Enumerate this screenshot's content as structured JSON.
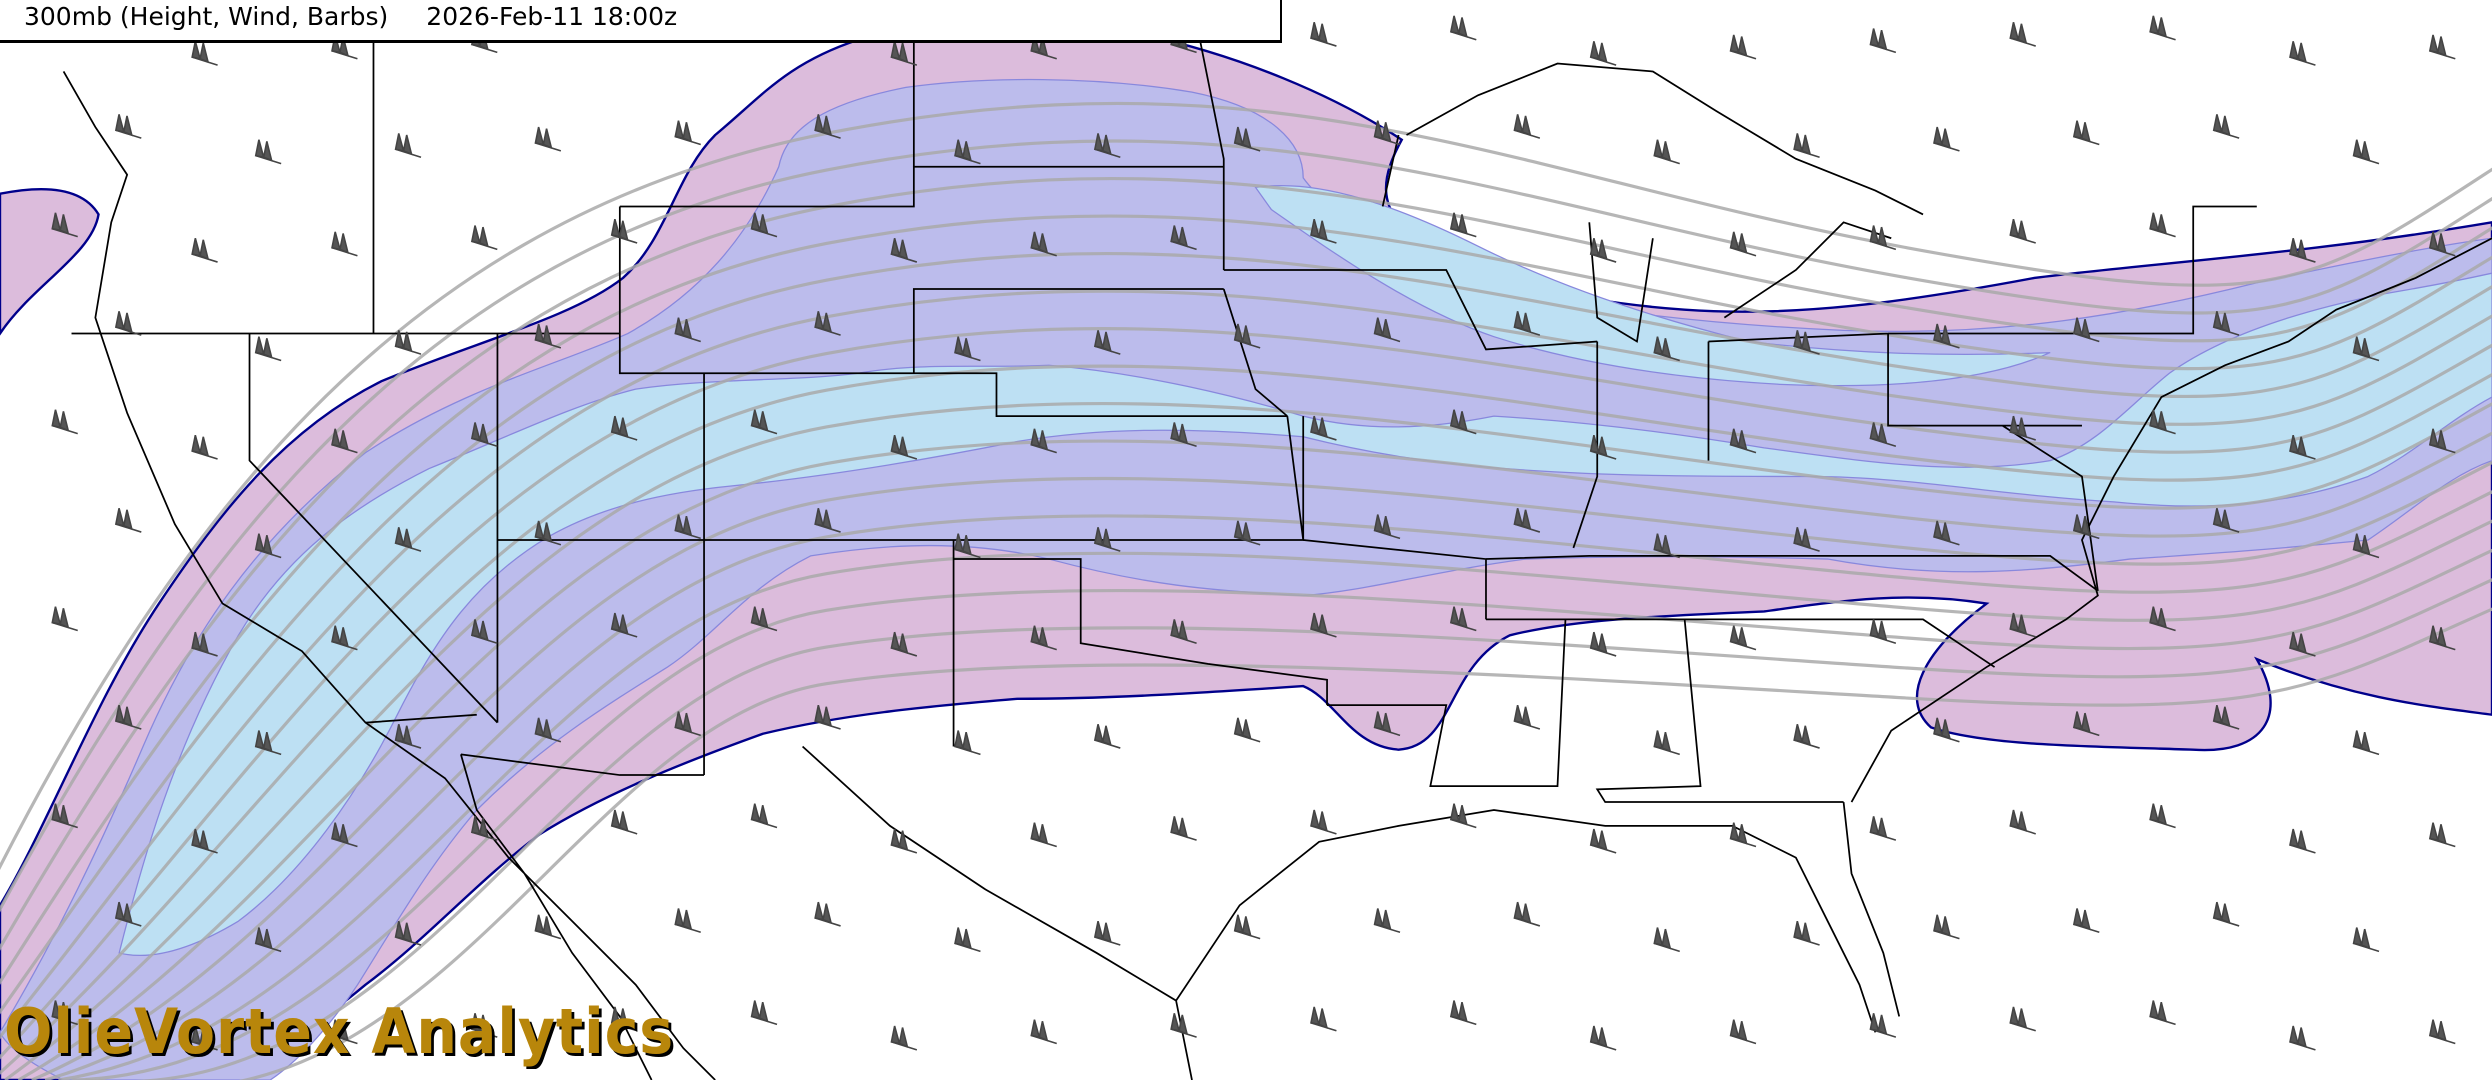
{
  "header": {
    "product": "300mb (Height, Wind, Barbs)",
    "valid_time": "2026-Feb-11 18:00z"
  },
  "logo": {
    "text": "OlieVortex Analytics",
    "color": "#b8860b"
  },
  "map": {
    "region": "Continental United States",
    "layers": [
      "300mb geopotential height contours",
      "300mb wind speed shading",
      "wind barbs",
      "state borders",
      "coastlines"
    ],
    "colors": {
      "wind_band_outer": "#dcbcdc",
      "wind_band_middle": "#bcbcec",
      "wind_band_core": "#bde0f3",
      "band_outline": "#00008b",
      "height_contours": "#a9a9a9",
      "borders": "#000000",
      "barbs": "#4a4a4a"
    }
  }
}
